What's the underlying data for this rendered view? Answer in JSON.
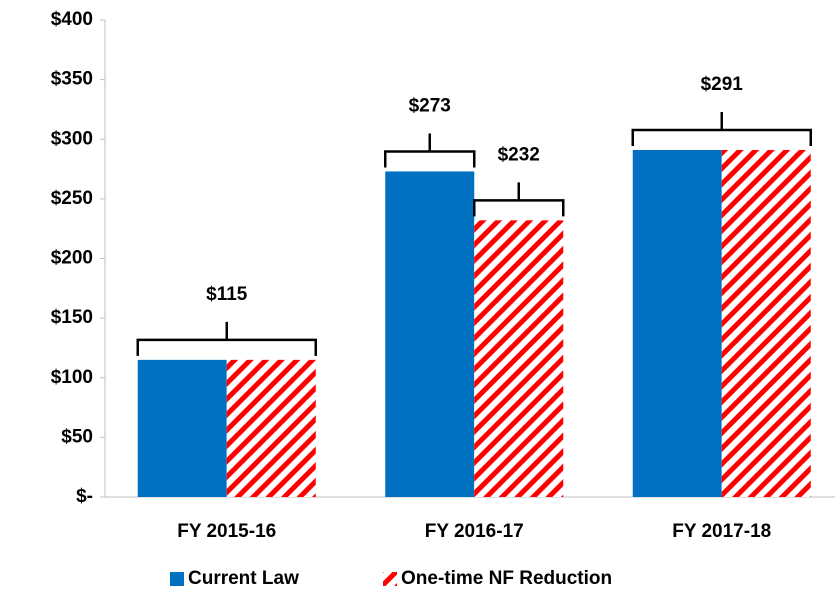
{
  "chart_data": {
    "type": "bar",
    "categories": [
      "FY 2015-16",
      "FY 2016-17",
      "FY 2017-18"
    ],
    "series": [
      {
        "name": "Current Law",
        "color": "#0070c0",
        "values": [
          115,
          273,
          291
        ],
        "value_labels": [
          "$115",
          "$273",
          "$291"
        ]
      },
      {
        "name": "One-time NF Reduction",
        "color": "#ff0000",
        "values": [
          115,
          232,
          291
        ],
        "value_labels": [
          null,
          "$232",
          null
        ]
      }
    ],
    "ylim": [
      0,
      400
    ],
    "yticks": [
      {
        "value": 0,
        "label": "$-"
      },
      {
        "value": 50,
        "label": "$50"
      },
      {
        "value": 100,
        "label": "$100"
      },
      {
        "value": 150,
        "label": "$150"
      },
      {
        "value": 200,
        "label": "$200"
      },
      {
        "value": 250,
        "label": "$250"
      },
      {
        "value": 300,
        "label": "$300"
      },
      {
        "value": 350,
        "label": "$350"
      },
      {
        "value": 400,
        "label": "$400"
      }
    ],
    "legend": "bottom"
  }
}
